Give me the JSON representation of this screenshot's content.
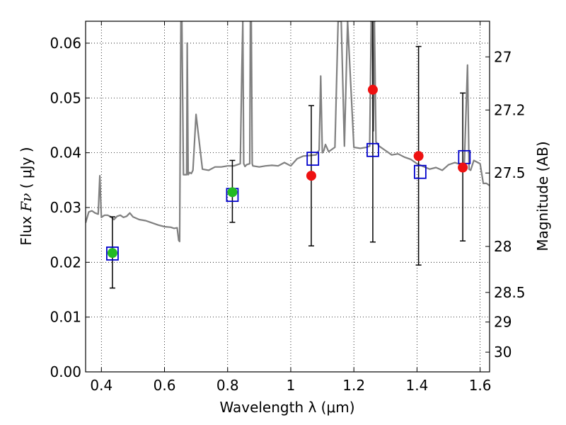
{
  "chart_data": {
    "type": "scatter",
    "xlabel": "Wavelength  λ (μm)",
    "ylabel_prefix": "Flux  ",
    "ylabel_math": "Fν",
    "ylabel_suffix": "  ( μJy )",
    "y2label": "Magnitude (AB)",
    "xlim": [
      0.35,
      1.63
    ],
    "ylim": [
      0.0,
      0.064
    ],
    "grid": true,
    "grid_style": "dotted",
    "x_ticks": [
      0.4,
      0.6,
      0.8,
      1.0,
      1.2,
      1.4,
      1.6
    ],
    "x_tick_labels": [
      "0.4",
      "0.6",
      "0.8",
      "1",
      "1.2",
      "1.4",
      "1.6"
    ],
    "y_ticks": [
      0.0,
      0.01,
      0.02,
      0.03,
      0.04,
      0.05,
      0.06
    ],
    "y_tick_labels": [
      "0.00",
      "0.01",
      "0.02",
      "0.03",
      "0.04",
      "0.05",
      "0.06"
    ],
    "y2_ticks": [
      {
        "label": "27",
        "flux": 0.0575
      },
      {
        "label": "27.2",
        "flux": 0.0478
      },
      {
        "label": "27.5",
        "flux": 0.0363
      },
      {
        "label": "28",
        "flux": 0.0229
      },
      {
        "label": "28.5",
        "flux": 0.0145
      },
      {
        "label": "29",
        "flux": 0.0091
      },
      {
        "label": "30",
        "flux": 0.0036
      }
    ],
    "series": [
      {
        "marker": "open-square",
        "color": "#0000cc",
        "x": [
          0.435,
          0.815,
          1.07,
          1.26,
          1.41,
          1.55
        ],
        "y": [
          0.0216,
          0.0323,
          0.0389,
          0.0405,
          0.0365,
          0.0392
        ]
      },
      {
        "marker": "circle",
        "color": "#22bb22",
        "x": [
          0.435,
          0.815
        ],
        "y": [
          0.0217,
          0.0328
        ],
        "yerr_low": [
          0.0153,
          0.0273
        ],
        "yerr_high": [
          0.0283,
          0.0386
        ]
      },
      {
        "marker": "circle",
        "color": "#ee1111",
        "x": [
          1.065,
          1.26,
          1.405,
          1.545
        ],
        "y": [
          0.0358,
          0.0515,
          0.0394,
          0.0373
        ],
        "yerr_low": [
          0.023,
          0.0237,
          0.0195,
          0.0239
        ],
        "yerr_high": [
          0.0486,
          0.064,
          0.0594,
          0.0509
        ]
      },
      {
        "type": "line",
        "color": "#808080",
        "x": [
          0.35,
          0.36,
          0.37,
          0.38,
          0.39,
          0.395,
          0.4,
          0.405,
          0.41,
          0.42,
          0.43,
          0.44,
          0.45,
          0.46,
          0.47,
          0.48,
          0.49,
          0.5,
          0.52,
          0.54,
          0.56,
          0.58,
          0.6,
          0.62,
          0.63,
          0.64,
          0.645,
          0.648,
          0.652,
          0.655,
          0.66,
          0.67,
          0.672,
          0.675,
          0.68,
          0.685,
          0.69,
          0.7,
          0.72,
          0.74,
          0.76,
          0.78,
          0.8,
          0.82,
          0.84,
          0.845,
          0.848,
          0.851,
          0.855,
          0.86,
          0.87,
          0.872,
          0.875,
          0.878,
          0.88,
          0.9,
          0.92,
          0.94,
          0.96,
          0.98,
          1.0,
          1.02,
          1.04,
          1.06,
          1.08,
          1.09,
          1.095,
          1.1,
          1.105,
          1.11,
          1.12,
          1.14,
          1.15,
          1.16,
          1.17,
          1.18,
          1.2,
          1.22,
          1.24,
          1.25,
          1.255,
          1.258,
          1.262,
          1.265,
          1.27,
          1.28,
          1.3,
          1.32,
          1.34,
          1.36,
          1.38,
          1.4,
          1.42,
          1.44,
          1.46,
          1.48,
          1.5,
          1.52,
          1.54,
          1.55,
          1.56,
          1.565,
          1.57,
          1.58,
          1.6,
          1.61,
          1.62,
          1.63
        ],
        "y": [
          0.0272,
          0.0292,
          0.0294,
          0.029,
          0.0288,
          0.0358,
          0.0282,
          0.0284,
          0.0286,
          0.0286,
          0.0283,
          0.0278,
          0.0284,
          0.0286,
          0.0282,
          0.0284,
          0.029,
          0.0283,
          0.0278,
          0.0276,
          0.0272,
          0.0268,
          0.0265,
          0.0264,
          0.0262,
          0.0263,
          0.024,
          0.0238,
          0.064,
          0.064,
          0.036,
          0.036,
          0.06,
          0.036,
          0.0364,
          0.0362,
          0.0368,
          0.047,
          0.037,
          0.0368,
          0.0374,
          0.0374,
          0.0376,
          0.0376,
          0.038,
          0.055,
          0.064,
          0.038,
          0.0375,
          0.0378,
          0.038,
          0.064,
          0.064,
          0.038,
          0.0376,
          0.0374,
          0.0376,
          0.0377,
          0.0376,
          0.0382,
          0.0376,
          0.0389,
          0.0394,
          0.0395,
          0.0396,
          0.0405,
          0.054,
          0.04,
          0.0404,
          0.0415,
          0.0402,
          0.041,
          0.064,
          0.064,
          0.0412,
          0.064,
          0.041,
          0.0408,
          0.041,
          0.0412,
          0.064,
          0.064,
          0.044,
          0.064,
          0.042,
          0.0412,
          0.0404,
          0.0396,
          0.0398,
          0.0392,
          0.0388,
          0.038,
          0.0375,
          0.037,
          0.0373,
          0.0368,
          0.0378,
          0.0382,
          0.0378,
          0.038,
          0.056,
          0.037,
          0.0368,
          0.0386,
          0.038,
          0.0344,
          0.0344,
          0.034
        ]
      }
    ]
  }
}
